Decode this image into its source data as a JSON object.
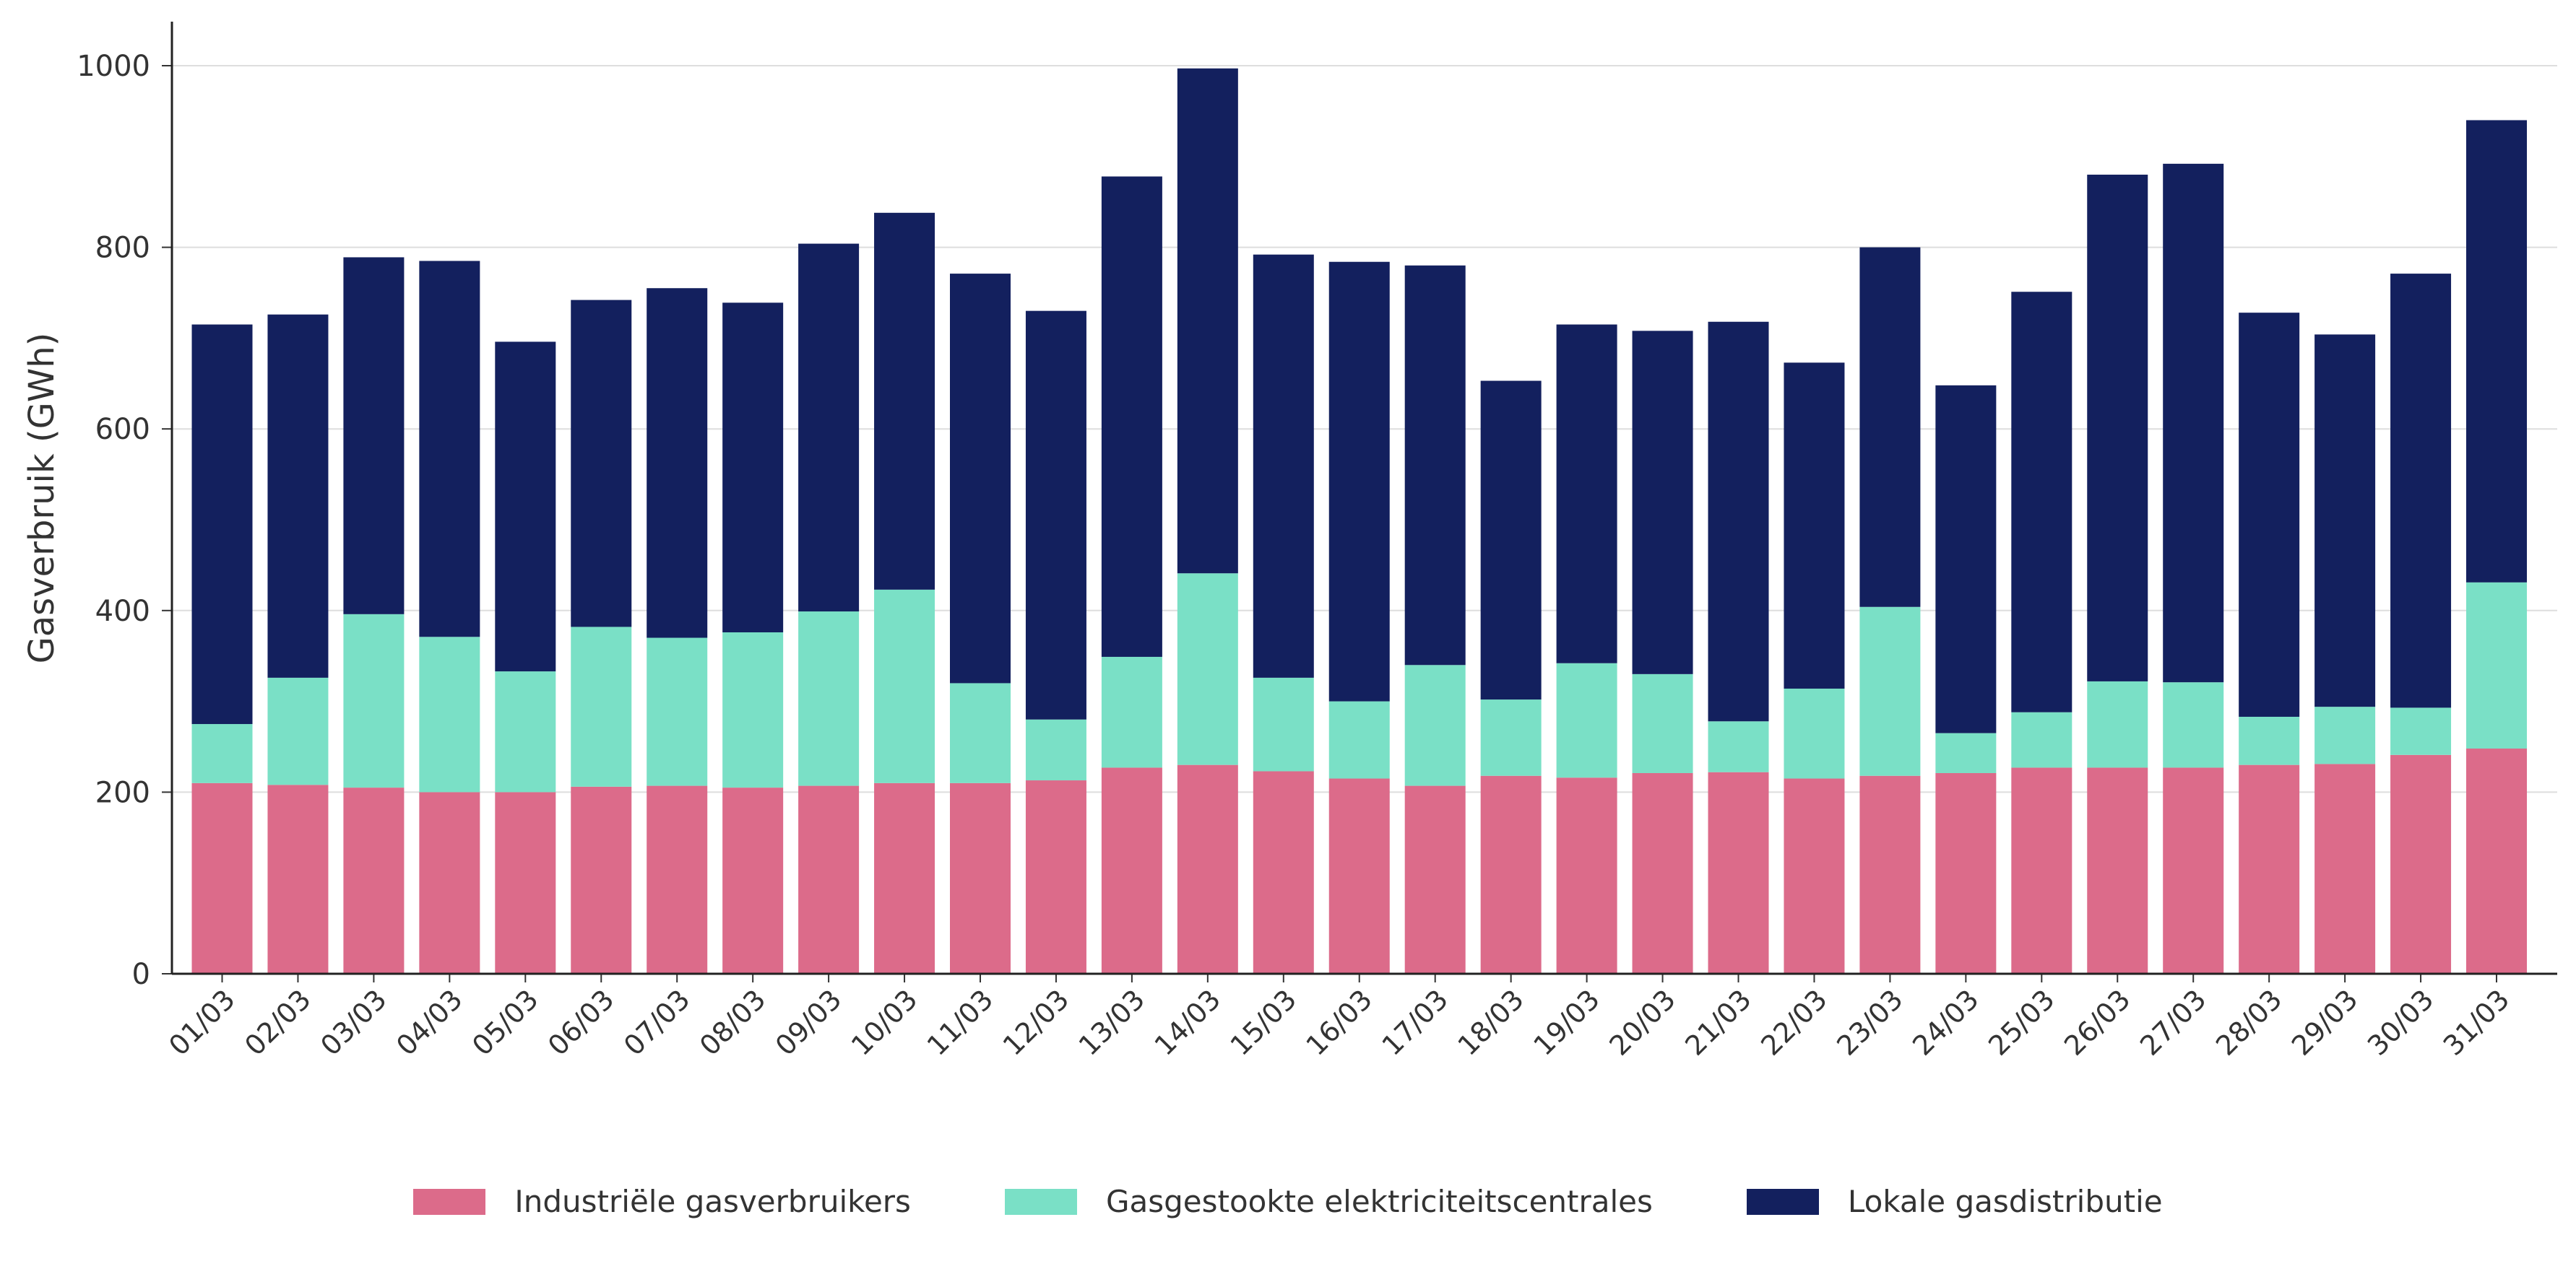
{
  "chart_data": {
    "type": "bar",
    "stacked": true,
    "ylabel": "Gasverbruik (GWh)",
    "xlabel": "",
    "ylim": [
      0,
      1050
    ],
    "yticks": [
      0,
      200,
      400,
      600,
      800,
      1000
    ],
    "grid": "horizontal",
    "legend_position": "bottom-center",
    "categories": [
      "01/03",
      "02/03",
      "03/03",
      "04/03",
      "05/03",
      "06/03",
      "07/03",
      "08/03",
      "09/03",
      "10/03",
      "11/03",
      "12/03",
      "13/03",
      "14/03",
      "15/03",
      "16/03",
      "17/03",
      "18/03",
      "19/03",
      "20/03",
      "21/03",
      "22/03",
      "23/03",
      "24/03",
      "25/03",
      "26/03",
      "27/03",
      "28/03",
      "29/03",
      "30/03",
      "31/03"
    ],
    "series": [
      {
        "name": "Industriële gasverbruikers",
        "color": "#dc6b8a",
        "values": [
          210,
          208,
          205,
          200,
          200,
          206,
          207,
          205,
          207,
          210,
          210,
          213,
          227,
          230,
          223,
          215,
          207,
          218,
          216,
          221,
          222,
          215,
          218,
          221,
          227,
          227,
          227,
          230,
          231,
          241,
          248
        ]
      },
      {
        "name": "Gasgestookte elektriciteitscentrales",
        "color": "#7ae0c6",
        "values": [
          65,
          118,
          191,
          171,
          133,
          176,
          163,
          171,
          192,
          213,
          110,
          67,
          122,
          211,
          103,
          85,
          133,
          84,
          126,
          109,
          56,
          99,
          186,
          44,
          61,
          95,
          94,
          53,
          63,
          52,
          183
        ]
      },
      {
        "name": "Lokale gasdistributie",
        "color": "#13205e",
        "values": [
          440,
          400,
          393,
          414,
          363,
          360,
          385,
          363,
          405,
          415,
          451,
          450,
          529,
          556,
          466,
          484,
          440,
          351,
          373,
          378,
          440,
          359,
          396,
          383,
          463,
          558,
          571,
          445,
          410,
          478,
          509
        ]
      }
    ]
  }
}
